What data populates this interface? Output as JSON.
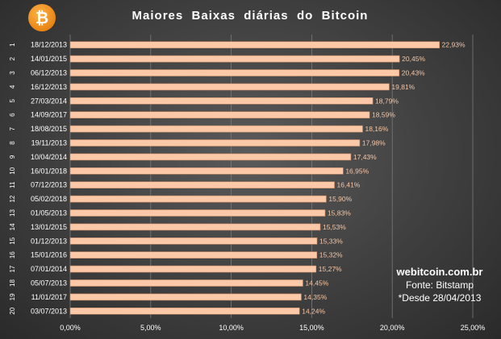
{
  "chart_data": {
    "type": "bar",
    "orientation": "horizontal",
    "title": "Maiores  Baixas  diárias  do  Bitcoin",
    "ranks": [
      "1",
      "2",
      "3",
      "4",
      "5",
      "6",
      "7",
      "8",
      "9",
      "10",
      "11",
      "12",
      "13",
      "14",
      "15",
      "16",
      "17",
      "18",
      "19",
      "20"
    ],
    "categories": [
      "18/12/2013",
      "14/01/2015",
      "06/12/2013",
      "16/12/2013",
      "27/03/2014",
      "14/09/2017",
      "18/08/2015",
      "19/11/2013",
      "10/04/2014",
      "16/01/2018",
      "07/12/2013",
      "05/02/2018",
      "01/05/2013",
      "13/01/2015",
      "01/12/2013",
      "15/01/2016",
      "07/01/2014",
      "05/07/2013",
      "11/01/2017",
      "03/07/2013"
    ],
    "values": [
      22.93,
      20.45,
      20.43,
      19.81,
      18.79,
      18.59,
      18.16,
      17.98,
      17.43,
      16.95,
      16.41,
      15.9,
      15.83,
      15.53,
      15.33,
      15.32,
      15.27,
      14.45,
      14.35,
      14.24
    ],
    "value_labels": [
      "22,93%",
      "20,45%",
      "20,43%",
      "19,81%",
      "18,79%",
      "18,59%",
      "18,16%",
      "17,98%",
      "17,43%",
      "16,95%",
      "16,41%",
      "15,90%",
      "15,83%",
      "15,53%",
      "15,33%",
      "15,32%",
      "15,27%",
      "14,45%",
      "14,35%",
      "14,24%"
    ],
    "x_ticks": [
      0,
      5,
      10,
      15,
      20,
      25
    ],
    "x_tick_labels": [
      "0,00%",
      "5,00%",
      "10,00%",
      "15,00%",
      "20,00%",
      "25,00%"
    ],
    "xlim": [
      0,
      25
    ],
    "grid": true,
    "colors": {
      "bar": "#fbc9a8",
      "bar_outline": "#c98b66",
      "label": "#f6c7a6",
      "logo": "#f7931a"
    }
  },
  "logo": {
    "glyph": "₿"
  },
  "source": {
    "site": "webitcoin.com.br",
    "fonte": "Fonte: Bitstamp",
    "desde": "*Desde 28/04/2013"
  }
}
